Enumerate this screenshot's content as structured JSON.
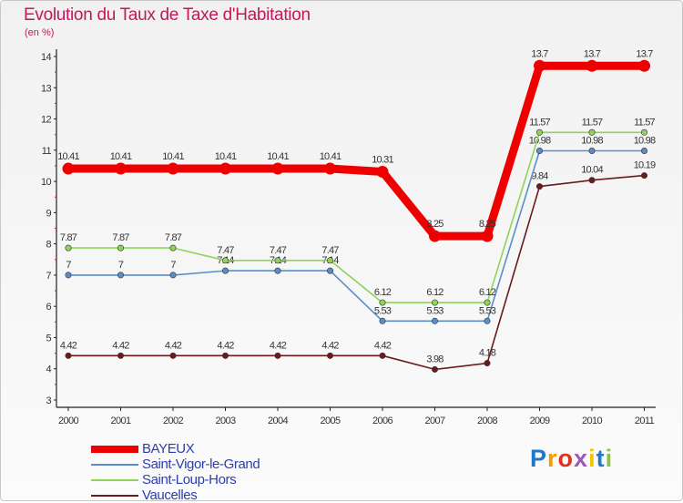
{
  "title": "Evolution du Taux de Taxe d'Habitation",
  "unit": "(en %)",
  "logo": {
    "text": "Proxiti",
    "letters": [
      "P",
      "r",
      "o",
      "x",
      "i",
      "t",
      "i"
    ],
    "colors": [
      "#1f78c8",
      "#f59a00",
      "#e0301e",
      "#9b59b6",
      "#f5c400",
      "#1f78c8",
      "#8bc34a"
    ]
  },
  "chart_data": {
    "type": "line",
    "categories": [
      "2000",
      "2001",
      "2002",
      "2003",
      "2004",
      "2005",
      "2006",
      "2007",
      "2008",
      "2009",
      "2010",
      "2011"
    ],
    "ylim": [
      3,
      14
    ],
    "yticks": [
      "3",
      "4",
      "5",
      "6",
      "7",
      "8",
      "9",
      "10",
      "11",
      "12",
      "13",
      "14"
    ],
    "grid": false,
    "legend_position": "bottom-left",
    "series": [
      {
        "name": "Vaucelles",
        "color": "#6b1a1a",
        "values": [
          4.42,
          4.42,
          4.42,
          4.42,
          4.42,
          4.42,
          4.42,
          3.98,
          4.18,
          9.84,
          10.04,
          10.19
        ],
        "labels": [
          "4.42",
          "4.42",
          "4.42",
          "4.42",
          "4.42",
          "4.42",
          "4.42",
          "3.98",
          "4.18",
          "9.84",
          "10.04",
          "10.19"
        ]
      },
      {
        "name": "Saint-Vigor-le-Grand",
        "color": "#5a8ec9",
        "values": [
          7,
          7,
          7,
          7.14,
          7.14,
          7.14,
          5.53,
          5.53,
          5.53,
          10.98,
          10.98,
          10.98
        ],
        "labels": [
          "7",
          "7",
          "7",
          "7.14",
          "7.14",
          "7.14",
          "5.53",
          "5.53",
          "5.53",
          "10.98",
          "10.98",
          "10.98"
        ]
      },
      {
        "name": "Saint-Loup-Hors",
        "color": "#8fd35a",
        "values": [
          7.87,
          7.87,
          7.87,
          7.47,
          7.47,
          7.47,
          6.12,
          6.12,
          6.12,
          11.57,
          11.57,
          11.57
        ],
        "labels": [
          "7.87",
          "7.87",
          "7.87",
          "7.47",
          "7.47",
          "7.47",
          "6.12",
          "6.12",
          "6.12",
          "11.57",
          "11.57",
          "11.57"
        ]
      },
      {
        "name": "BAYEUX",
        "color": "#ee0000",
        "values": [
          10.41,
          10.41,
          10.41,
          10.41,
          10.41,
          10.41,
          10.31,
          8.25,
          8.25,
          13.7,
          13.7,
          13.7
        ],
        "labels": [
          "10.41",
          "10.41",
          "10.41",
          "10.41",
          "10.41",
          "10.41",
          "10.31",
          "8.25",
          "8.25",
          "13.7",
          "13.7",
          "13.7"
        ]
      }
    ],
    "legend": [
      "BAYEUX",
      "Saint-Vigor-le-Grand",
      "Saint-Loup-Hors",
      "Vaucelles"
    ]
  }
}
